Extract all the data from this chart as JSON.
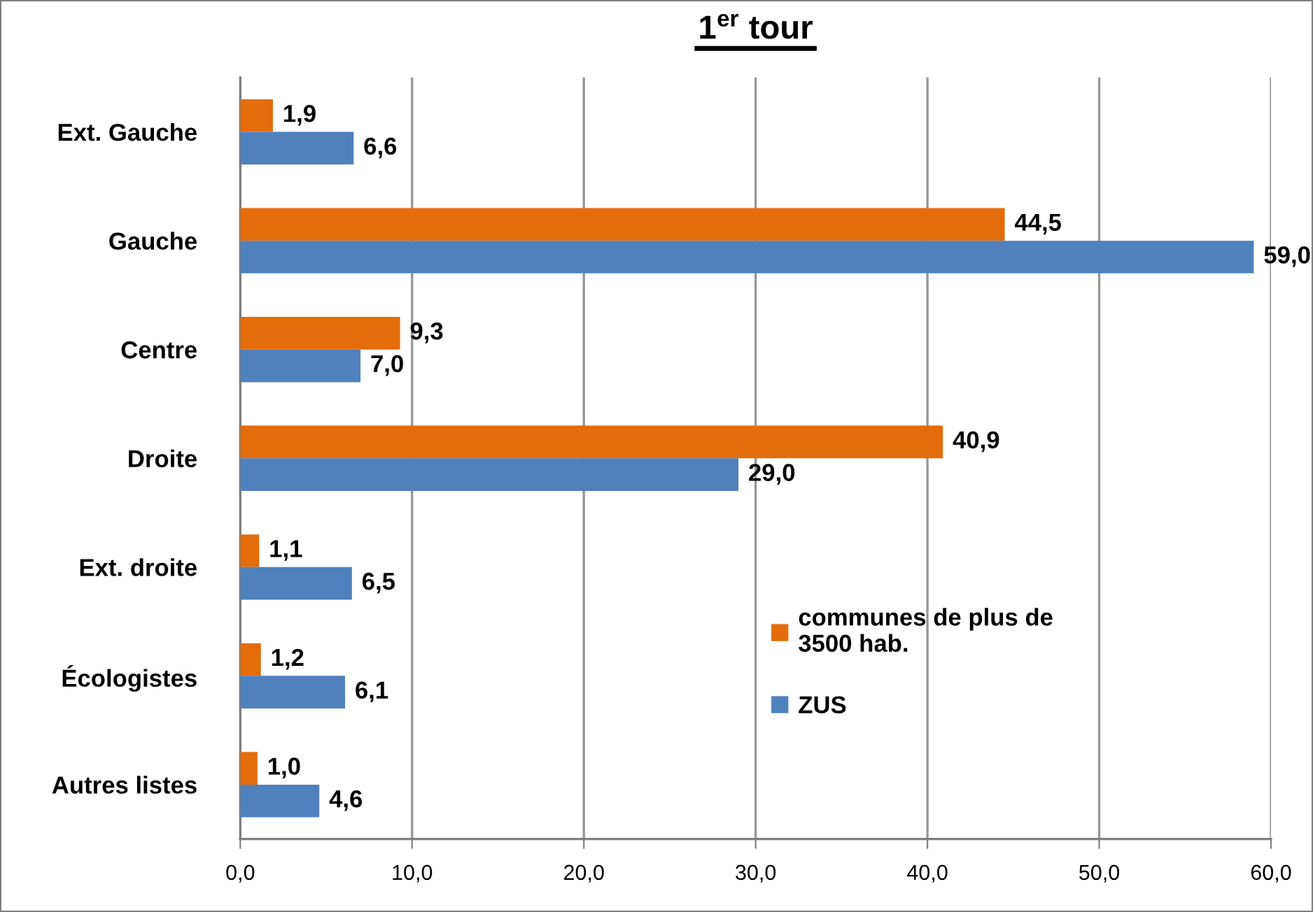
{
  "chart_data": {
    "type": "bar",
    "orientation": "horizontal",
    "title": "1$^{er}$ tour",
    "categories": [
      "Ext. Gauche",
      "Gauche",
      "Centre",
      "Droite",
      "Ext. droite",
      "Écologistes",
      "Autres listes"
    ],
    "series": [
      {
        "name": "communes de plus de\n3500 hab.",
        "color": "#e46c0a",
        "values": [
          1.9,
          44.5,
          9.3,
          40.9,
          1.1,
          1.2,
          1.0
        ],
        "value_labels": [
          "1,9",
          "44,5",
          "9,3",
          "40,9",
          "1,1",
          "1,2",
          "1,0"
        ]
      },
      {
        "name": "ZUS",
        "color": "#4f81bd",
        "values": [
          6.6,
          59.0,
          7.0,
          29.0,
          6.5,
          6.1,
          4.6
        ],
        "value_labels": [
          "6,6",
          "59,0",
          "7,0",
          "29,0",
          "6,5",
          "6,1",
          "4,6"
        ]
      }
    ],
    "xlim": [
      0,
      60
    ],
    "xticks": [
      {
        "value": 0,
        "label": "0,0"
      },
      {
        "value": 10,
        "label": "10,0"
      },
      {
        "value": 20,
        "label": "20,0"
      },
      {
        "value": 30,
        "label": "30,0"
      },
      {
        "value": 40,
        "label": "40,0"
      },
      {
        "value": 50,
        "label": "50,0"
      },
      {
        "value": 60,
        "label": "60,0"
      }
    ],
    "grid": "x",
    "legend": "bottom right"
  }
}
